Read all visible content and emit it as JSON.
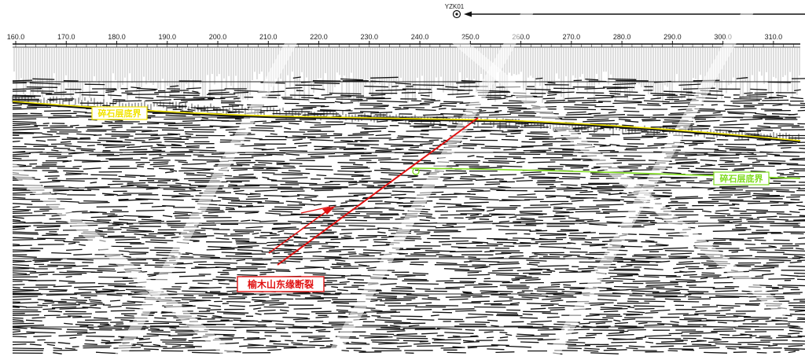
{
  "well": {
    "label": "YZK01",
    "x_value": 250.0
  },
  "axis": {
    "min": 160.0,
    "max": 315.0,
    "ticks": [
      "160.0",
      "170.0",
      "180.0",
      "190.0",
      "200.0",
      "210.0",
      "220.0",
      "230.0",
      "240.0",
      "250.0",
      "260.0",
      "270.0",
      "280.0",
      "290.0",
      "300.0",
      "310.0"
    ]
  },
  "horizons": {
    "upper": {
      "label": "碎石层底界",
      "color": "#f2e400"
    },
    "lower": {
      "label": "碎石层底界",
      "color": "#7fdc1e"
    }
  },
  "fault": {
    "label": "榆木山东缘断裂",
    "color": "#e01010"
  },
  "colors": {
    "trace": "#111111",
    "grid": "#222222",
    "background": "#ffffff"
  }
}
